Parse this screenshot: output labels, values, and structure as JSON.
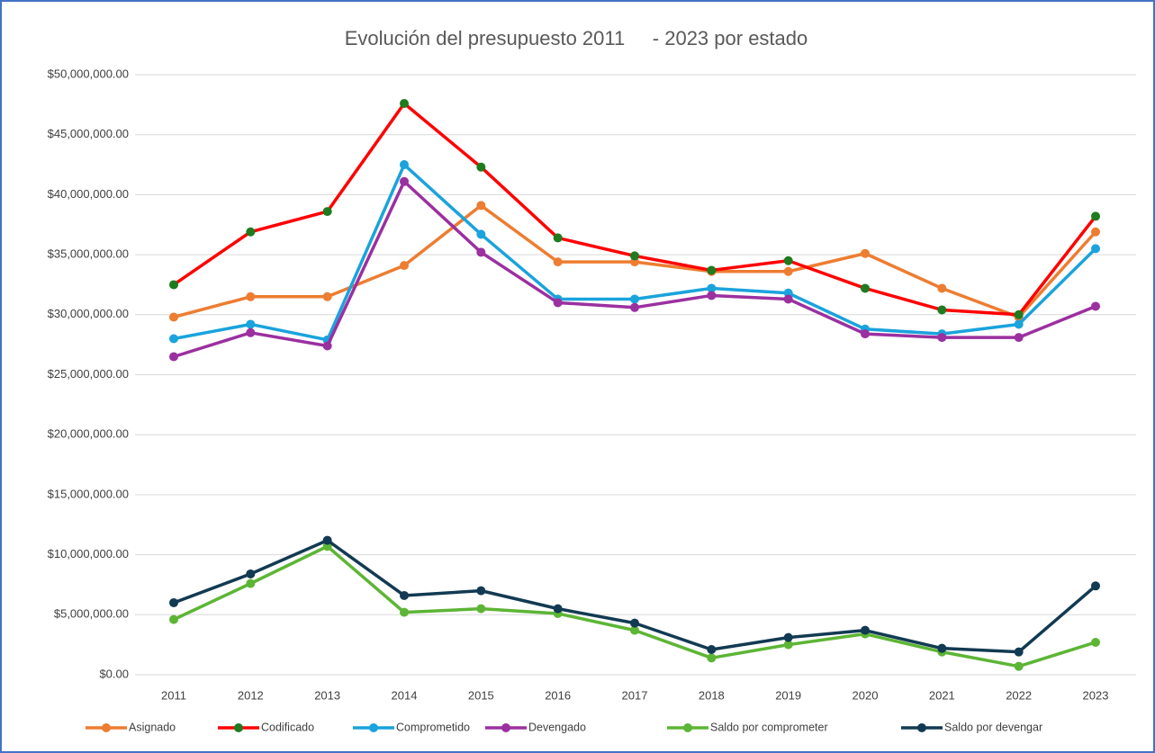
{
  "chart_data": {
    "type": "line",
    "title": "Evolución del presupuesto 2011     - 2023 por estado",
    "categories": [
      "2011",
      "2012",
      "2013",
      "2014",
      "2015",
      "2016",
      "2017",
      "2018",
      "2019",
      "2020",
      "2021",
      "2022",
      "2023"
    ],
    "series": [
      {
        "name": "Asignado",
        "color": "#ed7d31",
        "marker_color": "#ed7d31",
        "values": [
          29800000,
          31500000,
          31500000,
          34100000,
          39100000,
          34400000,
          34400000,
          33600000,
          33600000,
          35100000,
          32200000,
          29800000,
          36900000
        ]
      },
      {
        "name": "Codificado",
        "color": "#ff0000",
        "marker_color": "#1e7b1e",
        "values": [
          32500000,
          36900000,
          38600000,
          47600000,
          42300000,
          36400000,
          34900000,
          33700000,
          34500000,
          32200000,
          30400000,
          30000000,
          38200000
        ]
      },
      {
        "name": "Comprometido",
        "color": "#1aa3dc",
        "marker_color": "#1aa3dc",
        "values": [
          28000000,
          29200000,
          27900000,
          42500000,
          36700000,
          31300000,
          31300000,
          32200000,
          31800000,
          28800000,
          28400000,
          29200000,
          35500000
        ]
      },
      {
        "name": "Devengado",
        "color": "#9b30a0",
        "marker_color": "#9b30a0",
        "values": [
          26500000,
          28500000,
          27400000,
          41100000,
          35200000,
          31000000,
          30600000,
          31600000,
          31300000,
          28400000,
          28100000,
          28100000,
          30700000
        ]
      },
      {
        "name": "Saldo por comprometer",
        "color": "#5db535",
        "marker_color": "#5db535",
        "values": [
          4600000,
          7600000,
          10700000,
          5200000,
          5500000,
          5100000,
          3700000,
          1400000,
          2500000,
          3400000,
          1900000,
          700000,
          2700000
        ]
      },
      {
        "name": "Saldo por devengar",
        "color": "#123a52",
        "marker_color": "#123a52",
        "values": [
          6000000,
          8400000,
          11200000,
          6600000,
          7000000,
          5500000,
          4300000,
          2100000,
          3100000,
          3700000,
          2200000,
          1900000,
          7400000
        ]
      }
    ],
    "ylim": [
      0,
      50000000
    ],
    "yticks": [
      {
        "value": 0,
        "label": "$0.00"
      },
      {
        "value": 5000000,
        "label": "$5,000,000.00"
      },
      {
        "value": 10000000,
        "label": "$10,000,000.00"
      },
      {
        "value": 15000000,
        "label": "$15,000,000.00"
      },
      {
        "value": 20000000,
        "label": "$20,000,000.00"
      },
      {
        "value": 25000000,
        "label": "$25,000,000.00"
      },
      {
        "value": 30000000,
        "label": "$30,000,000.00"
      },
      {
        "value": 35000000,
        "label": "$35,000,000.00"
      },
      {
        "value": 40000000,
        "label": "$40,000,000.00"
      },
      {
        "value": 45000000,
        "label": "$45,000,000.00"
      },
      {
        "value": 50000000,
        "label": "$50,000,000.00"
      }
    ],
    "grid": true,
    "legend": "bottom"
  }
}
